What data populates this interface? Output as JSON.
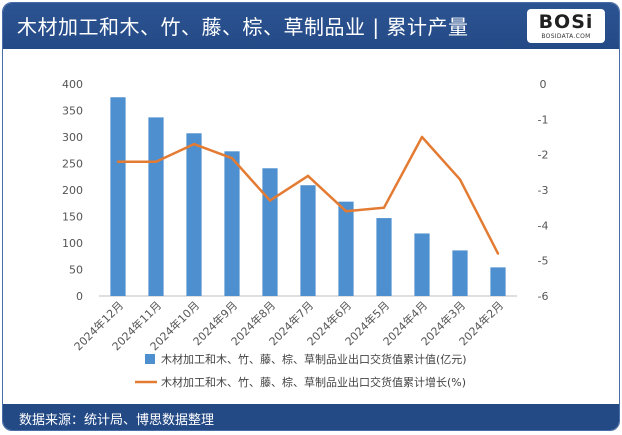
{
  "header": {
    "title": "木材加工和木、竹、藤、棕、草制品业 | 累计产量",
    "logo_text": "BOSi",
    "logo_sub": "BOSIDATA.COM"
  },
  "footer": {
    "source": "数据来源：统计局、博思数据整理"
  },
  "colors": {
    "header_bg": "#244a86",
    "bar": "#4e8fcf",
    "line": "#e47b33"
  },
  "chart_data": {
    "type": "bar",
    "categories": [
      "2024年12月",
      "2024年11月",
      "2024年10月",
      "2024年9月",
      "2024年8月",
      "2024年7月",
      "2024年6月",
      "2024年5月",
      "2024年4月",
      "2024年3月",
      "2024年2月"
    ],
    "series": [
      {
        "name": "木材加工和木、竹、藤、棕、草制品业出口交货值累计值(亿元)",
        "type": "bar",
        "axis": "left",
        "values": [
          375,
          337,
          307,
          273,
          241,
          209,
          178,
          147,
          118,
          86,
          54
        ]
      },
      {
        "name": "木材加工和木、竹、藤、棕、草制品业出口交货值累计增长(%)",
        "type": "line",
        "axis": "right",
        "values": [
          -2.2,
          -2.2,
          -1.7,
          -2.1,
          -3.3,
          -2.6,
          -3.6,
          -3.5,
          -1.5,
          -2.7,
          -4.8
        ]
      }
    ],
    "y_left": {
      "min": 0,
      "max": 400,
      "ticks": [
        0,
        50,
        100,
        150,
        200,
        250,
        300,
        350,
        400
      ]
    },
    "y_right": {
      "min": -6,
      "max": 0,
      "ticks": [
        0,
        -1,
        -2,
        -3,
        -4,
        -5,
        -6
      ]
    },
    "grid": false,
    "legend_position": "bottom"
  }
}
